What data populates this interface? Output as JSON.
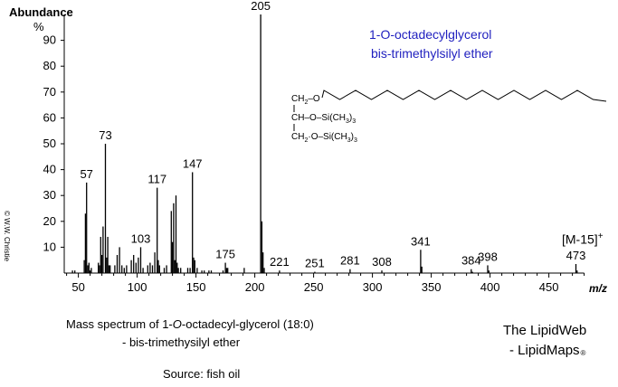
{
  "chart_data": {
    "type": "bar",
    "ylabel": "Abundance",
    "yunit": "%",
    "xlabel": "m/z",
    "xlim": [
      38,
      480
    ],
    "ylim": [
      0,
      100
    ],
    "xticks": [
      50,
      100,
      150,
      200,
      250,
      300,
      350,
      400,
      450
    ],
    "yticks": [
      10,
      20,
      30,
      40,
      50,
      60,
      70,
      80,
      90
    ],
    "compound_name": [
      "1-O-octadecylglycerol",
      "bis-trimethylsilyl ether"
    ],
    "ion_annotation": "[M-15]",
    "ion_annotation_sup": "+",
    "structure": {
      "row1": "CH2–O",
      "row2a": "CH–O–Si(CH",
      "row2b": ")",
      "row3a": "CH2·O–Si(CH",
      "row3b": ")",
      "sub2": "2",
      "sub3": "3"
    },
    "peaks": [
      {
        "x": 45,
        "y": 1
      },
      {
        "x": 47,
        "y": 1
      },
      {
        "x": 55,
        "y": 5
      },
      {
        "x": 56,
        "y": 23
      },
      {
        "x": 57,
        "y": 35,
        "label": "57"
      },
      {
        "x": 58,
        "y": 3
      },
      {
        "x": 59,
        "y": 4
      },
      {
        "x": 60,
        "y": 1
      },
      {
        "x": 61,
        "y": 2
      },
      {
        "x": 67,
        "y": 4
      },
      {
        "x": 68,
        "y": 3
      },
      {
        "x": 69,
        "y": 14
      },
      {
        "x": 70,
        "y": 7
      },
      {
        "x": 71,
        "y": 18
      },
      {
        "x": 73,
        "y": 50,
        "label": "73"
      },
      {
        "x": 74,
        "y": 6
      },
      {
        "x": 75,
        "y": 14
      },
      {
        "x": 76,
        "y": 3
      },
      {
        "x": 77,
        "y": 3
      },
      {
        "x": 81,
        "y": 3
      },
      {
        "x": 83,
        "y": 7
      },
      {
        "x": 85,
        "y": 10
      },
      {
        "x": 87,
        "y": 3
      },
      {
        "x": 89,
        "y": 2
      },
      {
        "x": 91,
        "y": 3
      },
      {
        "x": 95,
        "y": 5
      },
      {
        "x": 97,
        "y": 7
      },
      {
        "x": 99,
        "y": 4
      },
      {
        "x": 101,
        "y": 6
      },
      {
        "x": 103,
        "y": 10,
        "label": "103"
      },
      {
        "x": 105,
        "y": 2
      },
      {
        "x": 109,
        "y": 3
      },
      {
        "x": 111,
        "y": 4
      },
      {
        "x": 113,
        "y": 3
      },
      {
        "x": 115,
        "y": 8
      },
      {
        "x": 117,
        "y": 33,
        "label": "117"
      },
      {
        "x": 118,
        "y": 5
      },
      {
        "x": 119,
        "y": 3
      },
      {
        "x": 123,
        "y": 2
      },
      {
        "x": 125,
        "y": 3
      },
      {
        "x": 129,
        "y": 24
      },
      {
        "x": 130,
        "y": 12
      },
      {
        "x": 131,
        "y": 27
      },
      {
        "x": 132,
        "y": 5
      },
      {
        "x": 133,
        "y": 30
      },
      {
        "x": 134,
        "y": 4
      },
      {
        "x": 135,
        "y": 2
      },
      {
        "x": 137,
        "y": 2
      },
      {
        "x": 143,
        "y": 2
      },
      {
        "x": 145,
        "y": 2
      },
      {
        "x": 147,
        "y": 39,
        "label": "147"
      },
      {
        "x": 148,
        "y": 6
      },
      {
        "x": 149,
        "y": 5
      },
      {
        "x": 151,
        "y": 2
      },
      {
        "x": 155,
        "y": 1
      },
      {
        "x": 157,
        "y": 1
      },
      {
        "x": 161,
        "y": 1
      },
      {
        "x": 163,
        "y": 1
      },
      {
        "x": 173,
        "y": 1
      },
      {
        "x": 175,
        "y": 4,
        "label": "175"
      },
      {
        "x": 176,
        "y": 2
      },
      {
        "x": 177,
        "y": 2
      },
      {
        "x": 191,
        "y": 2
      },
      {
        "x": 205,
        "y": 100,
        "label": "205"
      },
      {
        "x": 206,
        "y": 20
      },
      {
        "x": 207,
        "y": 8
      },
      {
        "x": 208,
        "y": 2
      },
      {
        "x": 221,
        "y": 1,
        "label": "221"
      },
      {
        "x": 251,
        "y": 0.5,
        "label": "251"
      },
      {
        "x": 281,
        "y": 1.5,
        "label": "281"
      },
      {
        "x": 308,
        "y": 1,
        "label": "308"
      },
      {
        "x": 341,
        "y": 9,
        "label": "341"
      },
      {
        "x": 342,
        "y": 2.5
      },
      {
        "x": 384,
        "y": 1.5,
        "label": "384"
      },
      {
        "x": 385,
        "y": 0.5
      },
      {
        "x": 398,
        "y": 3,
        "label": "398"
      },
      {
        "x": 399,
        "y": 1
      },
      {
        "x": 473,
        "y": 3.5,
        "label": "473"
      },
      {
        "x": 474,
        "y": 1
      }
    ]
  },
  "caption": {
    "line1_pre": "Mass spectrum of 1-",
    "line1_italic": "O",
    "line1_post": "-octadecyl-glycerol (18:0)",
    "line2": "- bis-trimethysilyl ether",
    "line3": "Source: fish oil"
  },
  "credit": {
    "line1": "The LipidWeb",
    "line2": "- LipidMaps",
    "reg": "®"
  },
  "copyright": "© W.W. Christie",
  "colors": {
    "compound_name": "#1f1fbf",
    "bars": "#000000",
    "axes": "#000000"
  }
}
